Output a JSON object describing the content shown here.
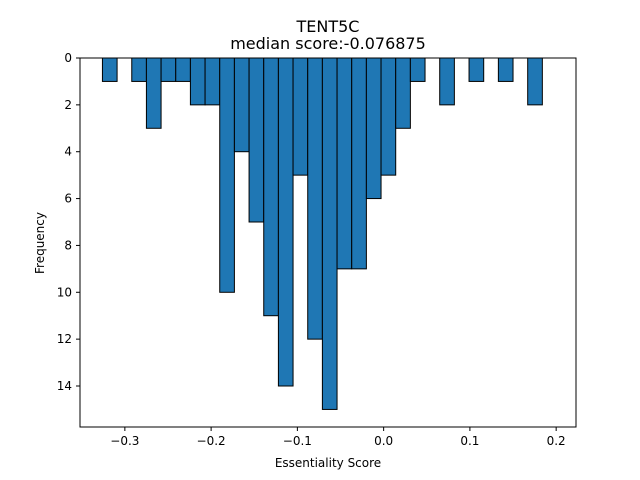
{
  "chart_data": {
    "type": "bar",
    "subtype": "histogram",
    "title": "TENT5C",
    "subtitle": "median score:-0.076875",
    "xlabel": "Essentiality Score",
    "ylabel": "Frequency",
    "xlim": [
      -0.352,
      0.223
    ],
    "ylim": [
      15.75,
      0
    ],
    "y_inverted": true,
    "bin_width": 0.017,
    "bar_color": "#1f77b4",
    "edge_color": "#000000",
    "bins": [
      {
        "left": -0.326,
        "count": 1
      },
      {
        "left": -0.309,
        "count": 0
      },
      {
        "left": -0.292,
        "count": 1
      },
      {
        "left": -0.275,
        "count": 3
      },
      {
        "left": -0.258,
        "count": 1
      },
      {
        "left": -0.241,
        "count": 1
      },
      {
        "left": -0.224,
        "count": 2
      },
      {
        "left": -0.207,
        "count": 2
      },
      {
        "left": -0.19,
        "count": 10
      },
      {
        "left": -0.173,
        "count": 4
      },
      {
        "left": -0.156,
        "count": 7
      },
      {
        "left": -0.139,
        "count": 11
      },
      {
        "left": -0.122,
        "count": 14
      },
      {
        "left": -0.105,
        "count": 5
      },
      {
        "left": -0.088,
        "count": 12
      },
      {
        "left": -0.071,
        "count": 15
      },
      {
        "left": -0.054,
        "count": 9
      },
      {
        "left": -0.037,
        "count": 9
      },
      {
        "left": -0.02,
        "count": 6
      },
      {
        "left": -0.003,
        "count": 5
      },
      {
        "left": 0.014,
        "count": 3
      },
      {
        "left": 0.031,
        "count": 1
      },
      {
        "left": 0.048,
        "count": 0
      },
      {
        "left": 0.065,
        "count": 2
      },
      {
        "left": 0.082,
        "count": 0
      },
      {
        "left": 0.099,
        "count": 1
      },
      {
        "left": 0.116,
        "count": 0
      },
      {
        "left": 0.133,
        "count": 1
      },
      {
        "left": 0.15,
        "count": 0
      },
      {
        "left": 0.167,
        "count": 2
      }
    ],
    "x_ticks": [
      {
        "value": -0.3,
        "label": "−0.3"
      },
      {
        "value": -0.2,
        "label": "−0.2"
      },
      {
        "value": -0.1,
        "label": "−0.1"
      },
      {
        "value": 0.0,
        "label": "0.0"
      },
      {
        "value": 0.1,
        "label": "0.1"
      },
      {
        "value": 0.2,
        "label": "0.2"
      }
    ],
    "y_ticks": [
      {
        "value": 0,
        "label": "0"
      },
      {
        "value": 2,
        "label": "2"
      },
      {
        "value": 4,
        "label": "4"
      },
      {
        "value": 6,
        "label": "6"
      },
      {
        "value": 8,
        "label": "8"
      },
      {
        "value": 10,
        "label": "10"
      },
      {
        "value": 12,
        "label": "12"
      },
      {
        "value": 14,
        "label": "14"
      }
    ],
    "grid": false,
    "legend": "none"
  }
}
